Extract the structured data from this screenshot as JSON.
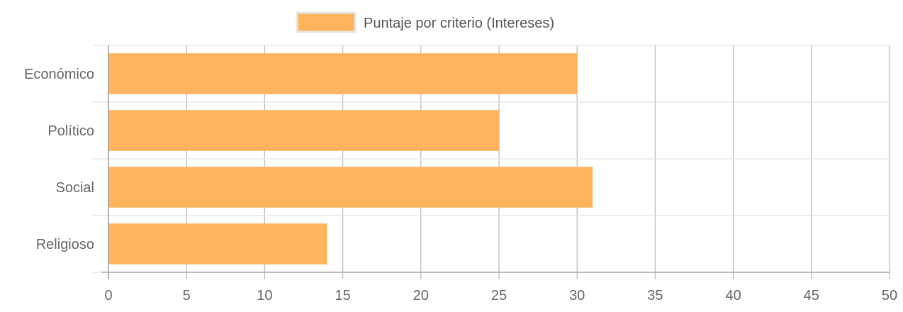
{
  "chart_data": {
    "type": "bar",
    "orientation": "horizontal",
    "categories": [
      "Económico",
      "Político",
      "Social",
      "Religioso"
    ],
    "series": [
      {
        "name": "Puntaje por criterio (Intereses)",
        "values": [
          30,
          25,
          31,
          14
        ],
        "color": "#FDB45C"
      }
    ],
    "xlim": [
      0,
      50
    ],
    "xticks": [
      "0",
      "5",
      "10",
      "15",
      "20",
      "25",
      "30",
      "35",
      "40",
      "45",
      "50"
    ],
    "grid": true,
    "legend_position": "top-center"
  }
}
